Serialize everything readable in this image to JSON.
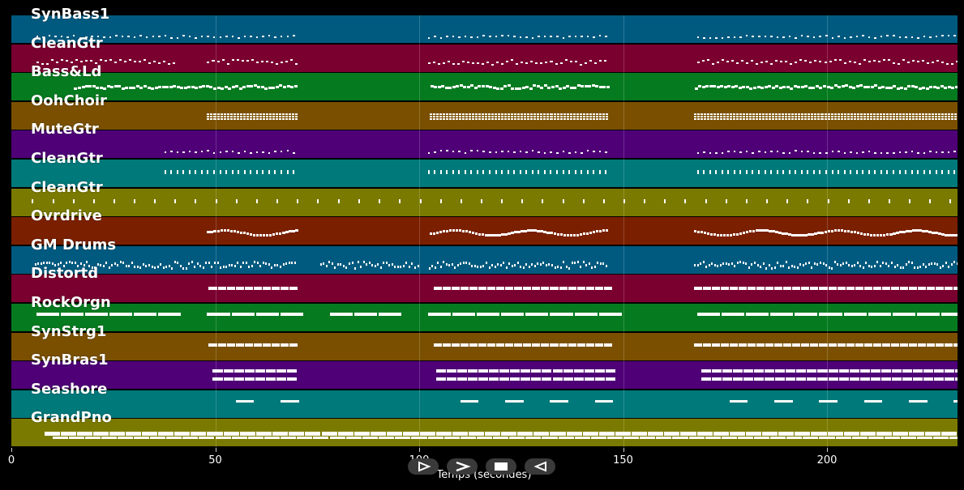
{
  "tracks": [
    {
      "label": "SynBass1",
      "color": "#005a80",
      "style": "dots"
    },
    {
      "label": "CleanGtr",
      "color": "#7a0030",
      "style": "dashes"
    },
    {
      "label": "Bass&Ld",
      "color": "#067a1f",
      "style": "thick"
    },
    {
      "label": "OohChoir",
      "color": "#7a5000",
      "style": "chords"
    },
    {
      "label": "MuteGtr",
      "color": "#4f0077",
      "style": "dots"
    },
    {
      "label": "CleanGtr",
      "color": "#00797a",
      "style": "ticks"
    },
    {
      "label": "CleanGtr",
      "color": "#7a7a00",
      "style": "sparse"
    },
    {
      "label": "Ovrdrive",
      "color": "#7a2000",
      "style": "melody"
    },
    {
      "label": "GM Drums",
      "color": "#005a80",
      "style": "drums"
    },
    {
      "label": "Distortd",
      "color": "#7a0030",
      "style": "blocks"
    },
    {
      "label": "RockOrgn",
      "color": "#067a1f",
      "style": "long"
    },
    {
      "label": "SynStrg1",
      "color": "#7a5000",
      "style": "blocks"
    },
    {
      "label": "SynBras1",
      "color": "#4f0077",
      "style": "double"
    },
    {
      "label": "Seashore",
      "color": "#00797a",
      "style": "seashore"
    },
    {
      "label": "GrandPno",
      "color": "#7a7a00",
      "style": "piano"
    }
  ],
  "axis": {
    "xlabel": "Temps (secondes)",
    "ticks": [
      "0",
      "50",
      "100",
      "150",
      "200"
    ],
    "range": [
      0,
      232
    ]
  },
  "controls": [
    {
      "name": "play-button",
      "icon": "play-icon"
    },
    {
      "name": "forward-button",
      "icon": "forward-icon"
    },
    {
      "name": "stop-button",
      "icon": "stop-icon"
    },
    {
      "name": "rewind-button",
      "icon": "rewind-icon"
    }
  ]
}
